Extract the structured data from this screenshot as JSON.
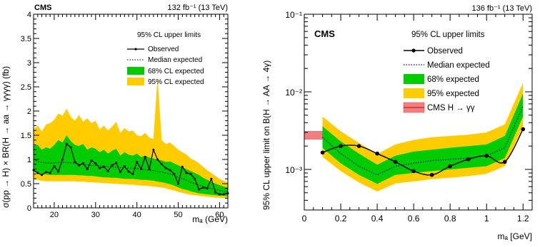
{
  "chart_data": [
    {
      "type": "line",
      "cms_label": "CMS",
      "lumi": "132 fb⁻¹ (13 TeV)",
      "legend_title": "95% CL upper limits",
      "xlabel": "mₐ (GeV)",
      "ylabel": "σ(pp → H) × BR(H → aa → γγγγ) (fb)",
      "xlim": [
        15,
        62
      ],
      "ylim": [
        0,
        4
      ],
      "x_ticks": [
        20,
        30,
        40,
        50,
        60
      ],
      "y_ticks": [
        0,
        0.5,
        1,
        1.5,
        2,
        2.5,
        3,
        3.5,
        4
      ],
      "legend_position": "top-right",
      "colors": {
        "band68": "#00cc00",
        "band95": "#ffcc00",
        "observed": "#000000",
        "expected": "#000000"
      },
      "x": [
        15,
        16,
        17,
        18,
        19,
        20,
        21,
        22,
        23,
        24,
        25,
        26,
        27,
        28,
        29,
        30,
        31,
        32,
        33,
        34,
        35,
        36,
        37,
        38,
        39,
        40,
        41,
        42,
        43,
        44,
        45,
        46,
        47,
        48,
        49,
        50,
        51,
        52,
        53,
        54,
        55,
        56,
        57,
        58,
        59,
        60,
        61,
        62
      ],
      "series": [
        {
          "name": "Observed",
          "style": "solid-marker",
          "values": [
            0.78,
            0.72,
            0.68,
            0.74,
            0.72,
            0.86,
            0.75,
            1.0,
            1.32,
            1.25,
            0.95,
            0.88,
            0.92,
            0.8,
            0.98,
            0.92,
            0.82,
            0.85,
            0.76,
            0.88,
            0.93,
            0.74,
            0.86,
            0.75,
            0.7,
            0.95,
            0.8,
            1.05,
            0.8,
            1.2,
            1.0,
            0.9,
            0.82,
            0.78,
            0.7,
            0.5,
            0.85,
            0.72,
            0.7,
            0.6,
            0.38,
            0.42,
            0.4,
            0.6,
            0.32,
            0.28,
            0.28,
            0.3
          ]
        },
        {
          "name": "Median expected",
          "style": "dotted",
          "values": [
            1.0,
            0.96,
            0.94,
            0.93,
            0.92,
            0.93,
            0.94,
            0.94,
            0.94,
            0.93,
            0.92,
            0.9,
            0.9,
            0.89,
            0.88,
            0.88,
            0.87,
            0.86,
            0.85,
            0.85,
            0.84,
            0.83,
            0.83,
            0.82,
            0.82,
            0.81,
            0.8,
            0.79,
            0.78,
            0.77,
            0.75,
            0.74,
            0.72,
            0.7,
            0.67,
            0.63,
            0.6,
            0.57,
            0.53,
            0.5,
            0.47,
            0.44,
            0.42,
            0.4,
            0.38,
            0.36,
            0.34,
            0.33
          ]
        },
        {
          "name": "68% CL expected",
          "role": "band",
          "lower": [
            0.75,
            0.72,
            0.7,
            0.69,
            0.68,
            0.68,
            0.68,
            0.68,
            0.68,
            0.68,
            0.68,
            0.67,
            0.67,
            0.66,
            0.66,
            0.65,
            0.64,
            0.63,
            0.63,
            0.62,
            0.62,
            0.61,
            0.6,
            0.6,
            0.6,
            0.59,
            0.58,
            0.58,
            0.57,
            0.56,
            0.54,
            0.53,
            0.51,
            0.49,
            0.46,
            0.42,
            0.39,
            0.37,
            0.34,
            0.32,
            0.3,
            0.29,
            0.28,
            0.27,
            0.26,
            0.25,
            0.25,
            0.24
          ],
          "upper": [
            1.28,
            1.3,
            1.2,
            1.25,
            1.22,
            1.3,
            1.4,
            1.35,
            1.5,
            1.38,
            1.3,
            1.28,
            1.32,
            1.2,
            1.25,
            1.22,
            1.15,
            1.2,
            1.12,
            1.18,
            1.22,
            1.08,
            1.15,
            1.1,
            1.08,
            1.12,
            1.05,
            1.08,
            1.04,
            1.02,
            1.0,
            0.98,
            0.95,
            0.96,
            0.92,
            0.88,
            0.84,
            0.8,
            0.76,
            0.72,
            0.68,
            0.62,
            0.58,
            0.54,
            0.5,
            0.47,
            0.44,
            0.42
          ]
        },
        {
          "name": "95% CL expected",
          "role": "band",
          "lower": [
            0.6,
            0.58,
            0.56,
            0.55,
            0.55,
            0.55,
            0.55,
            0.55,
            0.55,
            0.55,
            0.55,
            0.54,
            0.54,
            0.53,
            0.53,
            0.52,
            0.52,
            0.51,
            0.51,
            0.5,
            0.5,
            0.49,
            0.49,
            0.48,
            0.48,
            0.47,
            0.46,
            0.46,
            0.45,
            0.44,
            0.43,
            0.42,
            0.4,
            0.38,
            0.36,
            0.33,
            0.31,
            0.29,
            0.27,
            0.26,
            0.25,
            0.24,
            0.23,
            0.22,
            0.21,
            0.21,
            0.2,
            0.2
          ],
          "upper": [
            1.62,
            1.7,
            1.58,
            1.72,
            1.75,
            1.82,
            1.95,
            1.9,
            2.05,
            1.88,
            1.8,
            1.92,
            1.78,
            1.85,
            1.75,
            1.8,
            1.62,
            1.7,
            1.6,
            1.68,
            1.78,
            1.55,
            1.65,
            1.58,
            1.6,
            1.5,
            1.48,
            1.55,
            1.45,
            1.42,
            2.7,
            1.4,
            1.32,
            1.35,
            1.28,
            1.2,
            1.15,
            1.1,
            1.02,
            0.98,
            0.92,
            0.85,
            0.78,
            0.72,
            0.66,
            0.6,
            0.56,
            0.52
          ]
        }
      ]
    },
    {
      "type": "line",
      "cms_label": "CMS",
      "lumi": "136 fb⁻¹ (13 TeV)",
      "legend_title": "95% CL upper limits",
      "xlabel": "mₐ [GeV]",
      "ylabel": "95% CL upper limit on B(H → AA → 4γ)",
      "xlim": [
        0,
        1.25
      ],
      "ylim": [
        0.0003,
        0.1
      ],
      "y_scale": "log",
      "x_ticks": [
        0,
        0.2,
        0.4,
        0.6,
        0.8,
        1,
        1.2
      ],
      "x_tick_labels": [
        "0",
        "0.2",
        "0.4",
        "0.6",
        "0.8",
        "1",
        "1.2"
      ],
      "y_ticks": [
        0.001,
        0.01,
        0.1
      ],
      "y_tick_labels": [
        "10⁻³",
        "10⁻²",
        "10⁻¹"
      ],
      "legend_position": "top-right",
      "colors": {
        "band68": "#00cc00",
        "band95": "#ffcc00",
        "observed": "#000000",
        "expected": "#0000cc",
        "cms_gg": "#e83f3f"
      },
      "x": [
        0.1,
        0.2,
        0.3,
        0.4,
        0.5,
        0.6,
        0.7,
        0.8,
        0.9,
        1.0,
        1.1,
        1.2
      ],
      "series": [
        {
          "name": "Observed",
          "style": "solid-marker",
          "values": [
            0.00165,
            0.002,
            0.002,
            0.0016,
            0.00125,
            0.00095,
            0.00085,
            0.0011,
            0.00135,
            0.0015,
            0.00125,
            0.0033
          ]
        },
        {
          "name": "Median expected",
          "style": "dotted",
          "values": [
            0.0026,
            0.0016,
            0.0011,
            0.00085,
            0.0011,
            0.0012,
            0.0013,
            0.00135,
            0.0014,
            0.0015,
            0.0019,
            0.0065
          ]
        },
        {
          "name": "68% expected",
          "role": "band",
          "lower": [
            0.0019,
            0.0012,
            0.00085,
            0.00065,
            0.00085,
            0.0009,
            0.00095,
            0.001,
            0.00105,
            0.0011,
            0.0014,
            0.0048
          ],
          "upper": [
            0.0036,
            0.0023,
            0.0016,
            0.00115,
            0.0015,
            0.0017,
            0.0018,
            0.0019,
            0.002,
            0.0021,
            0.0027,
            0.0095
          ]
        },
        {
          "name": "95% expected",
          "role": "band",
          "lower": [
            0.00145,
            0.00095,
            0.00068,
            0.00052,
            0.00066,
            0.0007,
            0.00075,
            0.00078,
            0.00082,
            0.00088,
            0.0011,
            0.0036
          ],
          "upper": [
            0.0048,
            0.0031,
            0.0022,
            0.00158,
            0.0021,
            0.0024,
            0.0026,
            0.0027,
            0.0028,
            0.003,
            0.0038,
            0.013
          ]
        },
        {
          "name": "CMS H → γγ",
          "role": "reference-band",
          "x_range": [
            0,
            0.1
          ],
          "lower": 0.00245,
          "upper": 0.0031
        }
      ]
    }
  ]
}
